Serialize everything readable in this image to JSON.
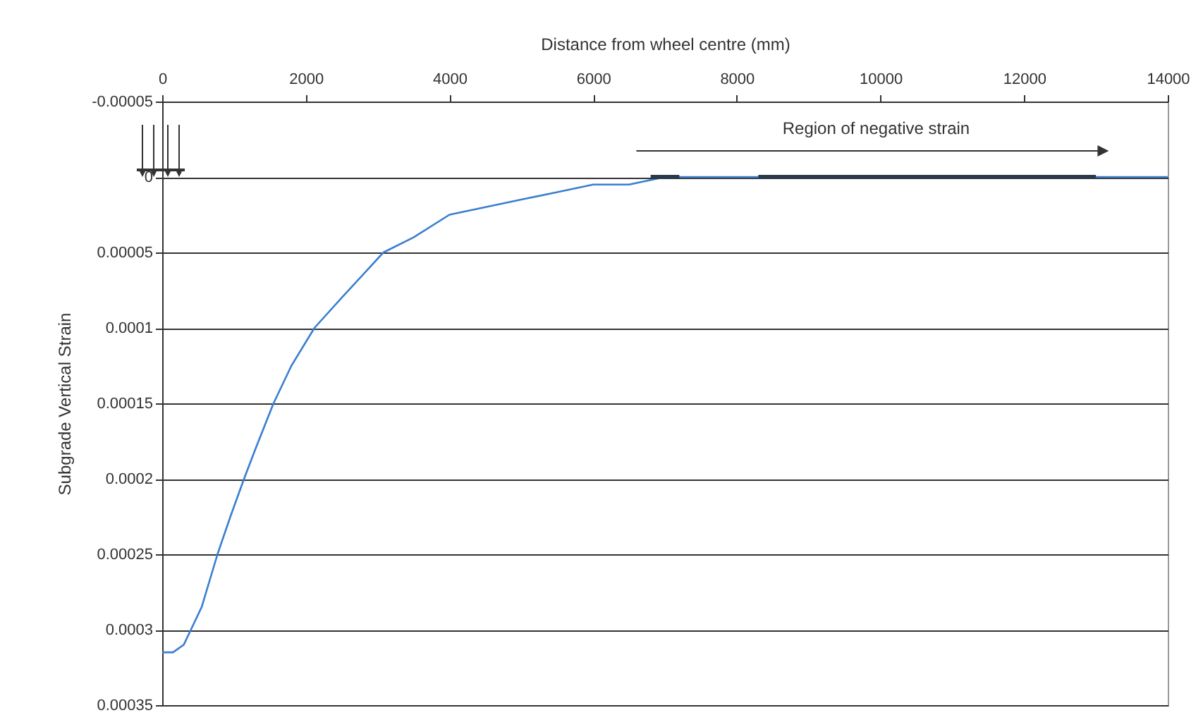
{
  "chart_data": {
    "type": "line",
    "xlabel": "Distance from wheel centre (mm)",
    "ylabel": "Subgrade Vertical Strain",
    "xlim": [
      0,
      14000
    ],
    "xticks": [
      0,
      2000,
      4000,
      6000,
      8000,
      10000,
      12000,
      14000
    ],
    "ylim": [
      0.00035,
      -5e-05
    ],
    "yticks": [
      {
        "value": -5e-05,
        "label": "-0.00005"
      },
      0,
      {
        "value": 5e-05,
        "label": "0.00005"
      },
      0.0001,
      0.00015,
      0.0002,
      0.00025,
      0.0003,
      0.00035
    ],
    "grid": "y",
    "line_style": "solid",
    "series": [
      {
        "color": "#3a7fd0",
        "x": [
          0,
          150,
          300,
          400,
          550,
          770,
          950,
          1140,
          1300,
          1550,
          1800,
          2120,
          2500,
          3080,
          3500,
          4000,
          4500,
          5000,
          5500,
          6000,
          6500,
          7000,
          7500,
          14000
        ],
        "values": [
          0.000315,
          0.000315,
          0.00031,
          0.0003,
          0.000285,
          0.00025,
          0.000225,
          0.0002,
          0.00018,
          0.00015,
          0.000125,
          0.0001,
          8e-05,
          5e-05,
          4e-05,
          2.5e-05,
          2e-05,
          1.5e-05,
          1e-05,
          5e-06,
          5e-06,
          0,
          0,
          0
        ]
      },
      {
        "color": "#2a3a4a",
        "x": [
          6800,
          7200
        ],
        "values": [
          0,
          0
        ]
      },
      {
        "color": "#2a3a4a",
        "x": [
          8300,
          13000
        ],
        "values": [
          0,
          0
        ]
      }
    ],
    "annotations": [
      "Region of negative strain"
    ]
  }
}
